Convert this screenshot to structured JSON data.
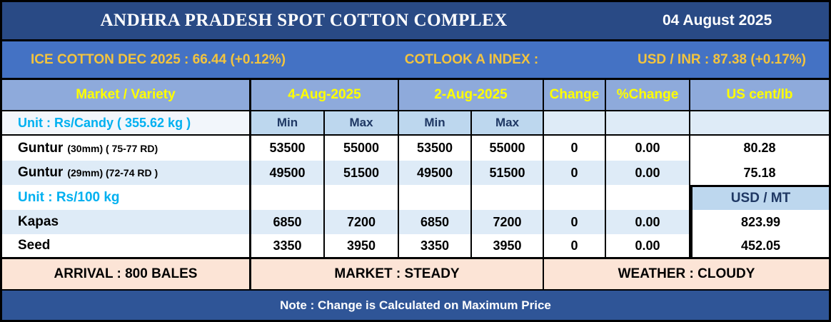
{
  "title": {
    "text": "ANDHRA PRADESH SPOT COTTON COMPLEX",
    "date": "04 August 2025"
  },
  "ticker": {
    "ice": "ICE COTTON DEC 2025 : 66.44 (+0.12%)",
    "cotlook": "COTLOOK A INDEX :",
    "usdinr": "USD / INR : 87.38 (+0.17%)"
  },
  "table": {
    "headers": {
      "market": "Market / Variety",
      "date1": "4-Aug-2025",
      "date2": "2-Aug-2025",
      "change": "Change",
      "pct_change": "%Change",
      "us_cent": "US cent/lb"
    },
    "subheader": {
      "unit_candy": "Unit : Rs/Candy ( 355.62 kg )",
      "min1": "Min",
      "max1": "Max",
      "min2": "Min",
      "max2": "Max"
    },
    "rows": [
      {
        "name": "Guntur",
        "spec": "(30mm) ( 75-77 RD)",
        "d1min": "53500",
        "d1max": "55000",
        "d2min": "53500",
        "d2max": "55000",
        "change": "0",
        "pct": "0.00",
        "last": "80.28"
      },
      {
        "name": "Guntur",
        "spec": "(29mm) (72-74 RD )",
        "d1min": "49500",
        "d1max": "51500",
        "d2min": "49500",
        "d2max": "51500",
        "change": "0",
        "pct": "0.00",
        "last": "75.18"
      },
      {
        "unit_label": "Unit : Rs/100 kg",
        "last": "USD / MT"
      },
      {
        "name": "Kapas",
        "d1min": "6850",
        "d1max": "7200",
        "d2min": "6850",
        "d2max": "7200",
        "change": "0",
        "pct": "0.00",
        "last": "823.99"
      },
      {
        "name": "Seed",
        "d1min": "3350",
        "d1max": "3950",
        "d2min": "3350",
        "d2max": "3950",
        "change": "0",
        "pct": "0.00",
        "last": "452.05"
      }
    ],
    "footer": {
      "arrival": "ARRIVAL : 800 BALES",
      "market": "MARKET : STEADY",
      "weather": "WEATHER : CLOUDY"
    },
    "note": "Note : Change is Calculated on Maximum Price"
  },
  "colors": {
    "title_bg": "#294A85",
    "ticker_bg": "#4472C4",
    "ticker_text": "#F3C43E",
    "header_bg": "#8EAADB",
    "header_text": "#FFFF00",
    "minmax_bg": "#BDD7EE",
    "stripe_bg": "#DEEBF7",
    "unit_text": "#00B0F0",
    "navy_text": "#1F3864",
    "arrival_bg": "#FCE4D6",
    "note_bg": "#2F5597"
  }
}
